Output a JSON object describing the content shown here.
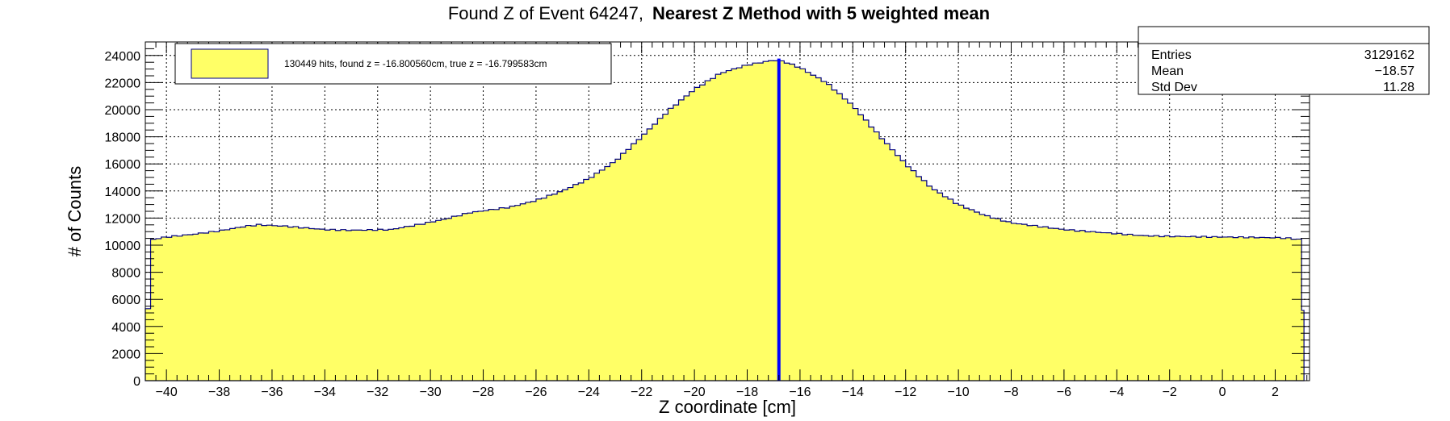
{
  "chart_data": {
    "type": "histogram",
    "title_part1": "Found Z of Event 64247,",
    "title_part2": "Nearest Z Method with 5 weighted mean",
    "xlabel": "Z coordinate [cm]",
    "ylabel": "# of Counts",
    "xlim": [
      -40.8,
      3.3
    ],
    "ylim": [
      0,
      25000
    ],
    "x_ticks": [
      -40,
      -38,
      -36,
      -34,
      -32,
      -30,
      -28,
      -26,
      -24,
      -22,
      -20,
      -18,
      -16,
      -14,
      -12,
      -10,
      -8,
      -6,
      -4,
      -2,
      0,
      2
    ],
    "y_ticks": [
      0,
      2000,
      4000,
      6000,
      8000,
      10000,
      12000,
      14000,
      16000,
      18000,
      20000,
      22000,
      24000
    ],
    "grid": true,
    "fill_color": "#ffff66",
    "line_color": "#000080",
    "marker_line": {
      "x": -16.80056,
      "color": "#0000ff"
    },
    "legend": {
      "placement": "top-left",
      "label": "130449 hits, found z = -16.800560cm, true z = -16.799583cm"
    },
    "stats": {
      "placement": "top-right",
      "rows": [
        {
          "label": "Entries",
          "value": "3129162"
        },
        {
          "label": "Mean",
          "value": "−18.57"
        },
        {
          "label": "Std Dev",
          "value": "11.28"
        }
      ]
    },
    "series": {
      "bin_width": 0.2,
      "profile": [
        [
          -40.8,
          5300
        ],
        [
          -40.6,
          10400
        ],
        [
          -40.0,
          10600
        ],
        [
          -39.0,
          10800
        ],
        [
          -38.0,
          11050
        ],
        [
          -37.0,
          11400
        ],
        [
          -36.5,
          11500
        ],
        [
          -35.5,
          11400
        ],
        [
          -34.0,
          11150
        ],
        [
          -33.0,
          11100
        ],
        [
          -31.5,
          11150
        ],
        [
          -30.5,
          11500
        ],
        [
          -29.5,
          11900
        ],
        [
          -28.5,
          12400
        ],
        [
          -27.0,
          12800
        ],
        [
          -26.0,
          13300
        ],
        [
          -25.0,
          14000
        ],
        [
          -24.0,
          14900
        ],
        [
          -23.0,
          16200
        ],
        [
          -22.0,
          18000
        ],
        [
          -21.0,
          19900
        ],
        [
          -20.0,
          21500
        ],
        [
          -19.0,
          22700
        ],
        [
          -18.0,
          23300
        ],
        [
          -17.0,
          23650
        ],
        [
          -16.6,
          23550
        ],
        [
          -16.0,
          23100
        ],
        [
          -15.0,
          22000
        ],
        [
          -14.0,
          20300
        ],
        [
          -13.0,
          18100
        ],
        [
          -12.0,
          16000
        ],
        [
          -11.0,
          14200
        ],
        [
          -10.0,
          13000
        ],
        [
          -9.0,
          12200
        ],
        [
          -8.0,
          11650
        ],
        [
          -7.0,
          11400
        ],
        [
          -6.0,
          11150
        ],
        [
          -5.0,
          11000
        ],
        [
          -4.0,
          10850
        ],
        [
          -3.0,
          10700
        ],
        [
          -2.0,
          10650
        ],
        [
          0.0,
          10600
        ],
        [
          2.0,
          10550
        ],
        [
          2.6,
          10500
        ],
        [
          3.0,
          10400
        ],
        [
          3.09,
          5200
        ]
      ]
    }
  }
}
